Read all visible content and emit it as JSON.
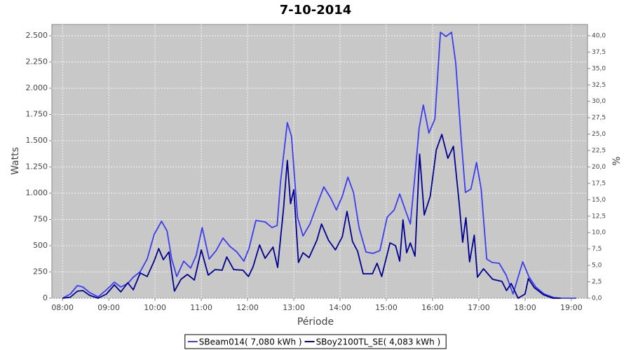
{
  "chart_data": {
    "type": "line",
    "title": "7-10-2014",
    "x_label": "Période",
    "y_label": "Watts",
    "y2_label": "%",
    "xlim": [
      7.77,
      19.35
    ],
    "xticks": [
      {
        "value": 8,
        "label": "08:00"
      },
      {
        "value": 9,
        "label": "09:00"
      },
      {
        "value": 10,
        "label": "10:00"
      },
      {
        "value": 11,
        "label": "11:00"
      },
      {
        "value": 12,
        "label": "12:00"
      },
      {
        "value": 13,
        "label": "13:00"
      },
      {
        "value": 14,
        "label": "14:00"
      },
      {
        "value": 15,
        "label": "15:00"
      },
      {
        "value": 16,
        "label": "16:00"
      },
      {
        "value": 17,
        "label": "17:00"
      },
      {
        "value": 18,
        "label": "18:00"
      },
      {
        "value": 19,
        "label": "19:00"
      }
    ],
    "ylim": [
      0,
      2607
    ],
    "yticks": [
      0,
      250,
      500,
      750,
      {
        "value": 1000,
        "label": "1.000"
      },
      {
        "value": 1250,
        "label": "1.250"
      },
      {
        "value": 1500,
        "label": "1.500"
      },
      {
        "value": 1750,
        "label": "1.750"
      },
      {
        "value": 2000,
        "label": "2.000"
      },
      {
        "value": 2250,
        "label": "2.250"
      },
      {
        "value": 2500,
        "label": "2.500"
      }
    ],
    "y2lim": [
      0,
      41.7
    ],
    "y2ticks": [
      {
        "value": 0,
        "label": "0,0"
      },
      {
        "value": 2.5,
        "label": "2,5"
      },
      {
        "value": 5,
        "label": "5,0"
      },
      {
        "value": 7.5,
        "label": "7,5"
      },
      {
        "value": 10,
        "label": "10,0"
      },
      {
        "value": 12.5,
        "label": "12,5"
      },
      {
        "value": 15,
        "label": "15,0"
      },
      {
        "value": 17.5,
        "label": "17,5"
      },
      {
        "value": 20,
        "label": "20,0"
      },
      {
        "value": 22.5,
        "label": "22,5"
      },
      {
        "value": 25,
        "label": "25,0"
      },
      {
        "value": 27.5,
        "label": "27,5"
      },
      {
        "value": 30,
        "label": "30,0"
      },
      {
        "value": 32.5,
        "label": "32,5"
      },
      {
        "value": 35,
        "label": "35,0"
      },
      {
        "value": 37.5,
        "label": "37,5"
      },
      {
        "value": 40,
        "label": "40,0"
      }
    ],
    "grid": true,
    "legend": "bottom",
    "series": [
      {
        "name": "SBeam014( 7,080 kWh )",
        "color": "#3c3cf0",
        "x": [
          8.0,
          8.17,
          8.32,
          8.44,
          8.59,
          8.77,
          8.95,
          9.12,
          9.26,
          9.41,
          9.53,
          9.68,
          9.83,
          9.98,
          10.14,
          10.26,
          10.36,
          10.47,
          10.62,
          10.77,
          10.89,
          11.02,
          11.17,
          11.32,
          11.47,
          11.62,
          11.77,
          11.92,
          12.03,
          12.18,
          12.38,
          12.53,
          12.64,
          12.71,
          12.86,
          12.95,
          13.08,
          13.2,
          13.35,
          13.5,
          13.65,
          13.8,
          13.92,
          14.05,
          14.17,
          14.29,
          14.41,
          14.56,
          14.71,
          14.86,
          15.02,
          15.17,
          15.29,
          15.41,
          15.52,
          15.62,
          15.71,
          15.8,
          15.92,
          16.05,
          16.17,
          16.29,
          16.41,
          16.5,
          16.62,
          16.71,
          16.83,
          16.95,
          17.05,
          17.17,
          17.29,
          17.44,
          17.59,
          17.74,
          17.83,
          17.95,
          18.08,
          18.23,
          18.41,
          18.62,
          18.77,
          19.11
        ],
        "values": [
          0,
          40,
          120,
          107,
          53,
          13,
          80,
          153,
          107,
          140,
          200,
          253,
          373,
          607,
          733,
          640,
          373,
          207,
          353,
          287,
          407,
          673,
          373,
          453,
          573,
          493,
          440,
          353,
          473,
          740,
          727,
          673,
          693,
          1093,
          1673,
          1540,
          773,
          593,
          707,
          887,
          1060,
          953,
          840,
          973,
          1153,
          1007,
          673,
          440,
          427,
          453,
          773,
          840,
          993,
          840,
          707,
          1173,
          1620,
          1840,
          1573,
          1707,
          2533,
          2493,
          2533,
          2240,
          1507,
          1007,
          1040,
          1293,
          1040,
          373,
          340,
          333,
          220,
          40,
          173,
          347,
          207,
          107,
          40,
          7,
          0,
          0
        ]
      },
      {
        "name": "SBoy2100TL_SE( 4,083 kWh )",
        "color": "#000090",
        "x": [
          8.0,
          8.17,
          8.32,
          8.44,
          8.59,
          8.77,
          8.95,
          9.12,
          9.26,
          9.41,
          9.53,
          9.68,
          9.83,
          9.98,
          10.08,
          10.18,
          10.3,
          10.42,
          10.56,
          10.7,
          10.85,
          11.0,
          11.15,
          11.3,
          11.45,
          11.55,
          11.7,
          11.9,
          12.02,
          12.12,
          12.26,
          12.38,
          12.55,
          12.65,
          12.78,
          12.86,
          12.93,
          13.0,
          13.1,
          13.2,
          13.33,
          13.5,
          13.6,
          13.75,
          13.9,
          14.05,
          14.15,
          14.27,
          14.38,
          14.5,
          14.7,
          14.8,
          14.9,
          15.08,
          15.2,
          15.29,
          15.36,
          15.44,
          15.52,
          15.62,
          15.72,
          15.82,
          15.95,
          16.08,
          16.2,
          16.33,
          16.45,
          16.57,
          16.65,
          16.72,
          16.8,
          16.9,
          16.97,
          17.1,
          17.3,
          17.5,
          17.6,
          17.7,
          17.85,
          18.0,
          18.07,
          18.2,
          18.4,
          18.6,
          18.77
        ],
        "values": [
          0,
          10,
          67,
          73,
          27,
          0,
          40,
          127,
          60,
          147,
          80,
          240,
          207,
          353,
          473,
          367,
          440,
          67,
          180,
          227,
          173,
          460,
          220,
          273,
          267,
          393,
          273,
          267,
          207,
          300,
          507,
          380,
          487,
          293,
          860,
          1313,
          900,
          1033,
          340,
          433,
          387,
          553,
          707,
          553,
          460,
          587,
          827,
          540,
          447,
          233,
          233,
          333,
          207,
          527,
          500,
          353,
          747,
          433,
          527,
          400,
          1373,
          793,
          973,
          1413,
          1560,
          1333,
          1447,
          927,
          533,
          767,
          347,
          600,
          200,
          280,
          180,
          160,
          73,
          140,
          0,
          40,
          187,
          100,
          33,
          0,
          0
        ]
      }
    ]
  }
}
